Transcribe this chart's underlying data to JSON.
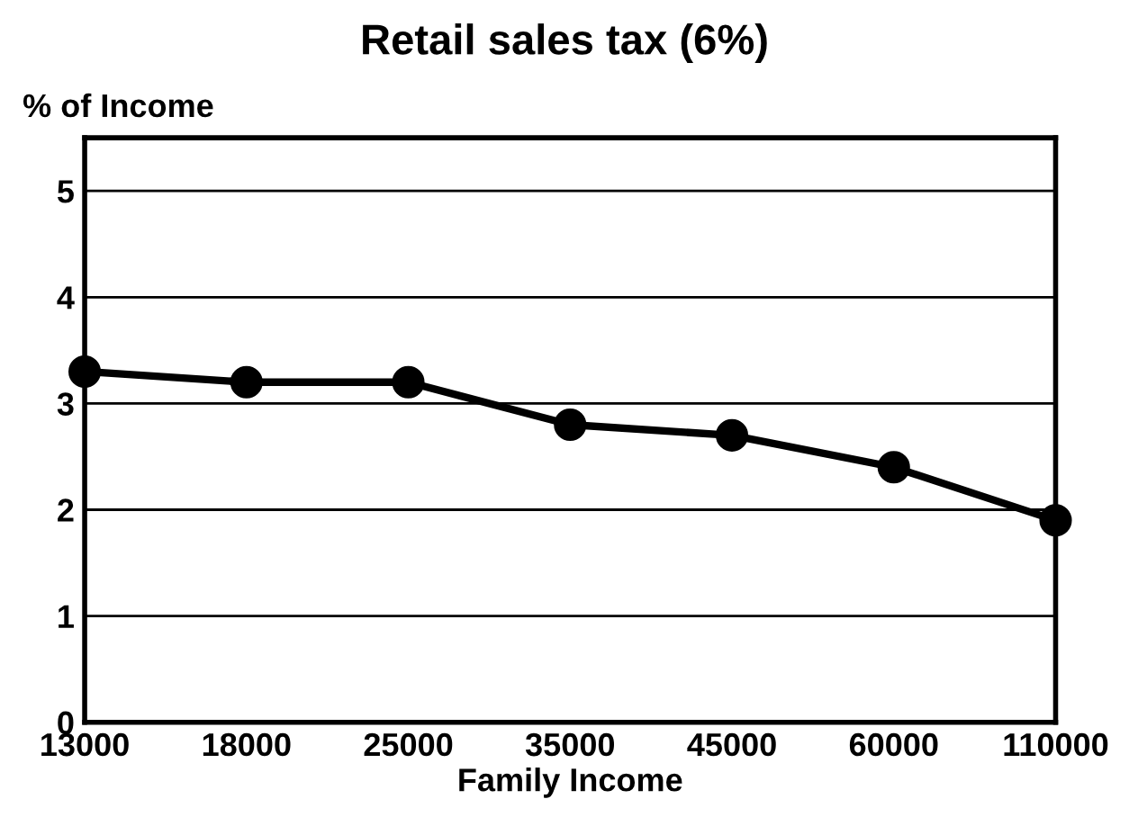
{
  "chart_data": {
    "type": "line",
    "title": "Retail sales tax (6%)",
    "ylabel": "% of Income",
    "xlabel": "Family Income",
    "categories": [
      "13000",
      "18000",
      "25000",
      "35000",
      "45000",
      "60000",
      "110000"
    ],
    "series": [
      {
        "color": "#000000",
        "values": [
          3.3,
          3.2,
          3.2,
          2.8,
          2.7,
          2.4,
          1.9
        ]
      }
    ],
    "ylim": [
      0,
      5.5
    ],
    "yticks": [
      0,
      1,
      2,
      3,
      4,
      5
    ],
    "grid": "y",
    "marker": "circle",
    "line_style": "solid",
    "legend": false
  }
}
